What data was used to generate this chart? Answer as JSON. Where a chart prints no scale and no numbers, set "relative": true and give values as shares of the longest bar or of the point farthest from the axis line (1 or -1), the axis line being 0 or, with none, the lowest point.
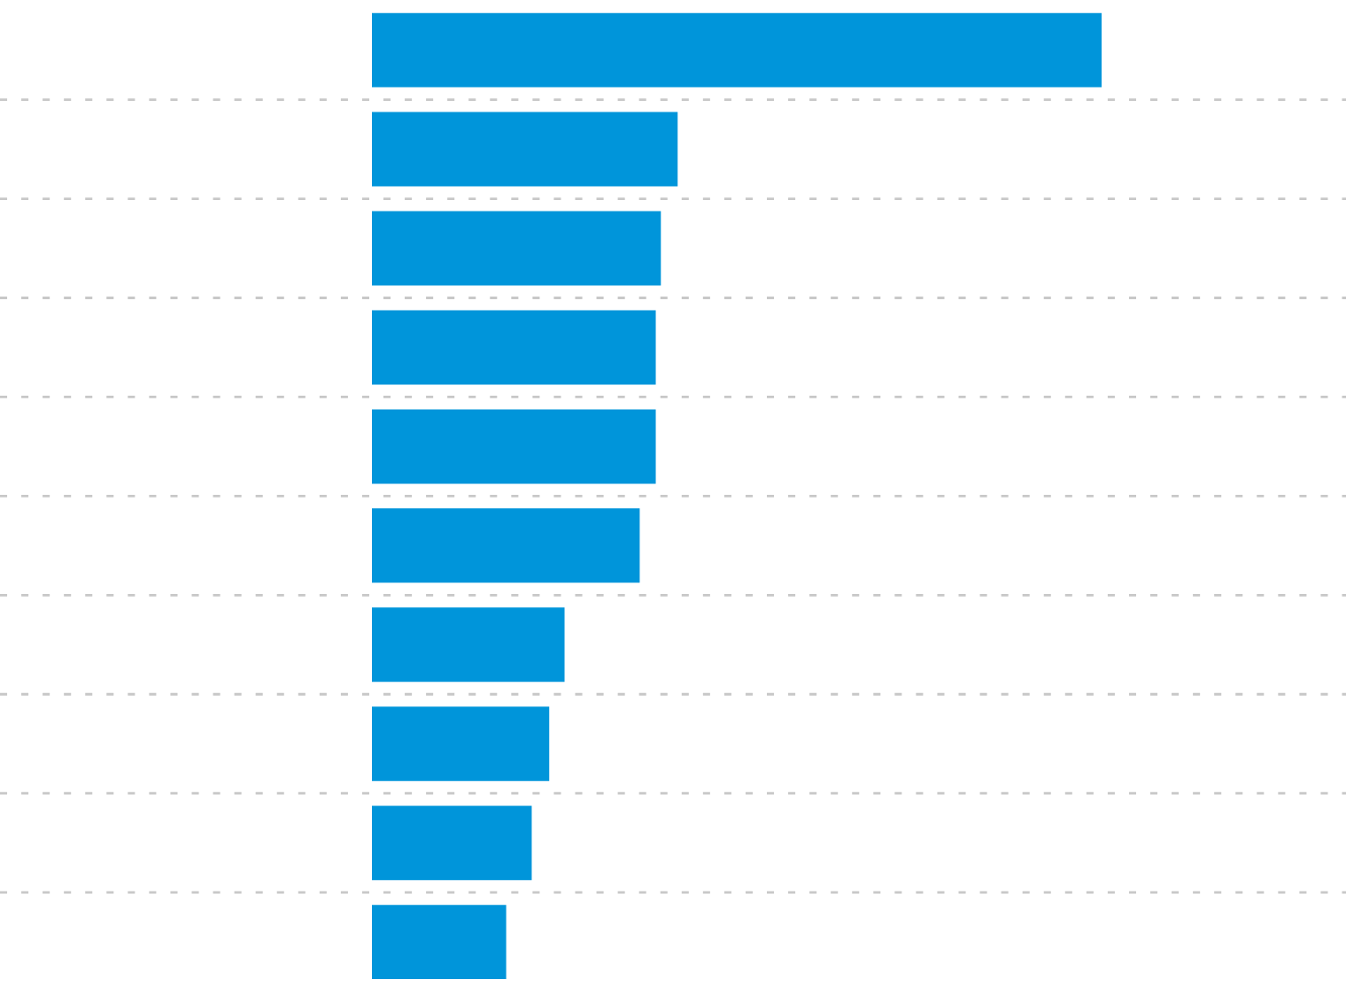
{
  "chart_data": {
    "type": "bar",
    "orientation": "horizontal",
    "relative": true,
    "categories": [
      null,
      null,
      null,
      null,
      null,
      null,
      null,
      null,
      null,
      null
    ],
    "values": [
      1,
      0.419,
      0.396,
      0.389,
      0.389,
      0.367,
      0.264,
      0.243,
      0.219,
      0.184
    ],
    "color": "#0095da",
    "grid": "y"
  }
}
